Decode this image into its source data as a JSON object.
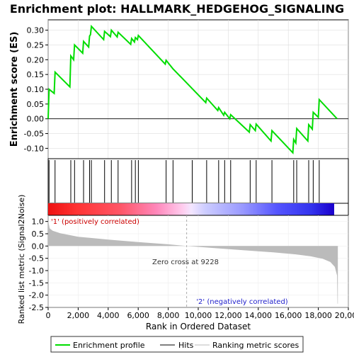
{
  "title": "Enrichment plot: HALLMARK_HEDGEHOG_SIGNALING",
  "chart_data": {
    "type": "line",
    "title": "Enrichment plot: HALLMARK_HEDGEHOG_SIGNALING",
    "xlabel": "Rank in Ordered Dataset",
    "xlim": [
      0,
      20000
    ],
    "x_ticks": [
      0,
      2000,
      4000,
      6000,
      8000,
      10000,
      12000,
      14000,
      16000,
      18000,
      20000
    ],
    "x_tick_labels": [
      "0",
      "2,000",
      "4,000",
      "6,000",
      "8,000",
      "10,000",
      "12,000",
      "14,000",
      "16,000",
      "18,000",
      "20,000"
    ],
    "panels": {
      "enrichment": {
        "ylabel": "Enrichment score (ES)",
        "ylim": [
          -0.135,
          0.335
        ],
        "y_ticks": [
          -0.1,
          -0.05,
          0.0,
          0.05,
          0.1,
          0.15,
          0.2,
          0.25,
          0.3
        ],
        "y_tick_labels": [
          "-0.10",
          "-0.05",
          "0.00",
          "0.05",
          "0.10",
          "0.15",
          "0.20",
          "0.25",
          "0.30"
        ],
        "zero_line": 0,
        "grid": true
      },
      "ranked_metric": {
        "ylabel": "Ranked list metric (Signal2Noise)",
        "ylim": [
          -2.5,
          1.25
        ],
        "y_ticks": [
          -2.5,
          -2.0,
          -1.5,
          -1.0,
          -0.5,
          0.0,
          0.5,
          1.0
        ],
        "y_tick_labels": [
          "-2.5",
          "-2.0",
          "-1.5",
          "-1.0",
          "-0.5",
          "0.0",
          "0.5",
          "1.0"
        ],
        "zero_cross_label": "Zero cross at 9228",
        "zero_cross": 9228,
        "positive_label": "'1' (positively correlated)",
        "negative_label": "'2' (negatively correlated)",
        "grid": true
      }
    },
    "series": [
      {
        "name": "Enrichment profile",
        "color": "#00dd00",
        "x": [
          0,
          60,
          400,
          460,
          1450,
          1510,
          1700,
          1760,
          2300,
          2360,
          2700,
          2760,
          2820,
          2880,
          3700,
          3760,
          4150,
          4210,
          4600,
          4660,
          5500,
          5560,
          5750,
          5810,
          5950,
          6010,
          7800,
          7860,
          8300,
          10500,
          10560,
          11300,
          11360,
          11700,
          11760,
          12100,
          12160,
          13400,
          13460,
          13800,
          13860,
          14850,
          14910,
          16300,
          16360,
          16500,
          16560,
          17300,
          17360,
          17600,
          17660,
          18000,
          18060,
          19250
        ],
        "y": [
          0.0,
          0.1,
          0.086,
          0.158,
          0.108,
          0.213,
          0.2,
          0.25,
          0.222,
          0.262,
          0.243,
          0.28,
          0.285,
          0.313,
          0.268,
          0.296,
          0.278,
          0.3,
          0.277,
          0.293,
          0.252,
          0.272,
          0.26,
          0.275,
          0.268,
          0.282,
          0.185,
          0.198,
          0.17,
          0.055,
          0.07,
          0.028,
          0.038,
          0.012,
          0.022,
          0.0,
          0.014,
          -0.045,
          -0.02,
          -0.04,
          -0.018,
          -0.075,
          -0.04,
          -0.115,
          -0.07,
          -0.082,
          -0.033,
          -0.075,
          -0.02,
          -0.035,
          0.022,
          0.005,
          0.065,
          0.0
        ]
      },
      {
        "name": "Hits",
        "color": "#000000",
        "x": [
          60,
          460,
          1510,
          1760,
          2360,
          2760,
          2880,
          3760,
          4210,
          4660,
          5560,
          5810,
          6010,
          7860,
          8320,
          9600,
          10560,
          11360,
          11760,
          12160,
          13460,
          13860,
          14910,
          16360,
          16560,
          17360,
          17660,
          18060
        ]
      },
      {
        "name": "Ranking metric scores",
        "color": "#bbbbbb",
        "shape": [
          [
            0,
            1.05
          ],
          [
            100,
            0.72
          ],
          [
            300,
            0.62
          ],
          [
            800,
            0.52
          ],
          [
            2000,
            0.38
          ],
          [
            4000,
            0.26
          ],
          [
            6000,
            0.16
          ],
          [
            8000,
            0.07
          ],
          [
            9228,
            0.0
          ],
          [
            11000,
            -0.08
          ],
          [
            13000,
            -0.17
          ],
          [
            15000,
            -0.26
          ],
          [
            16500,
            -0.34
          ],
          [
            17500,
            -0.42
          ],
          [
            18300,
            -0.52
          ],
          [
            18800,
            -0.65
          ],
          [
            19100,
            -0.85
          ],
          [
            19250,
            -1.2
          ],
          [
            19280,
            -2.35
          ],
          [
            19300,
            -2.35
          ]
        ]
      }
    ],
    "legend": {
      "placement": "bottom",
      "entries": [
        "Enrichment profile",
        "Hits",
        "Ranking metric scores"
      ]
    }
  }
}
